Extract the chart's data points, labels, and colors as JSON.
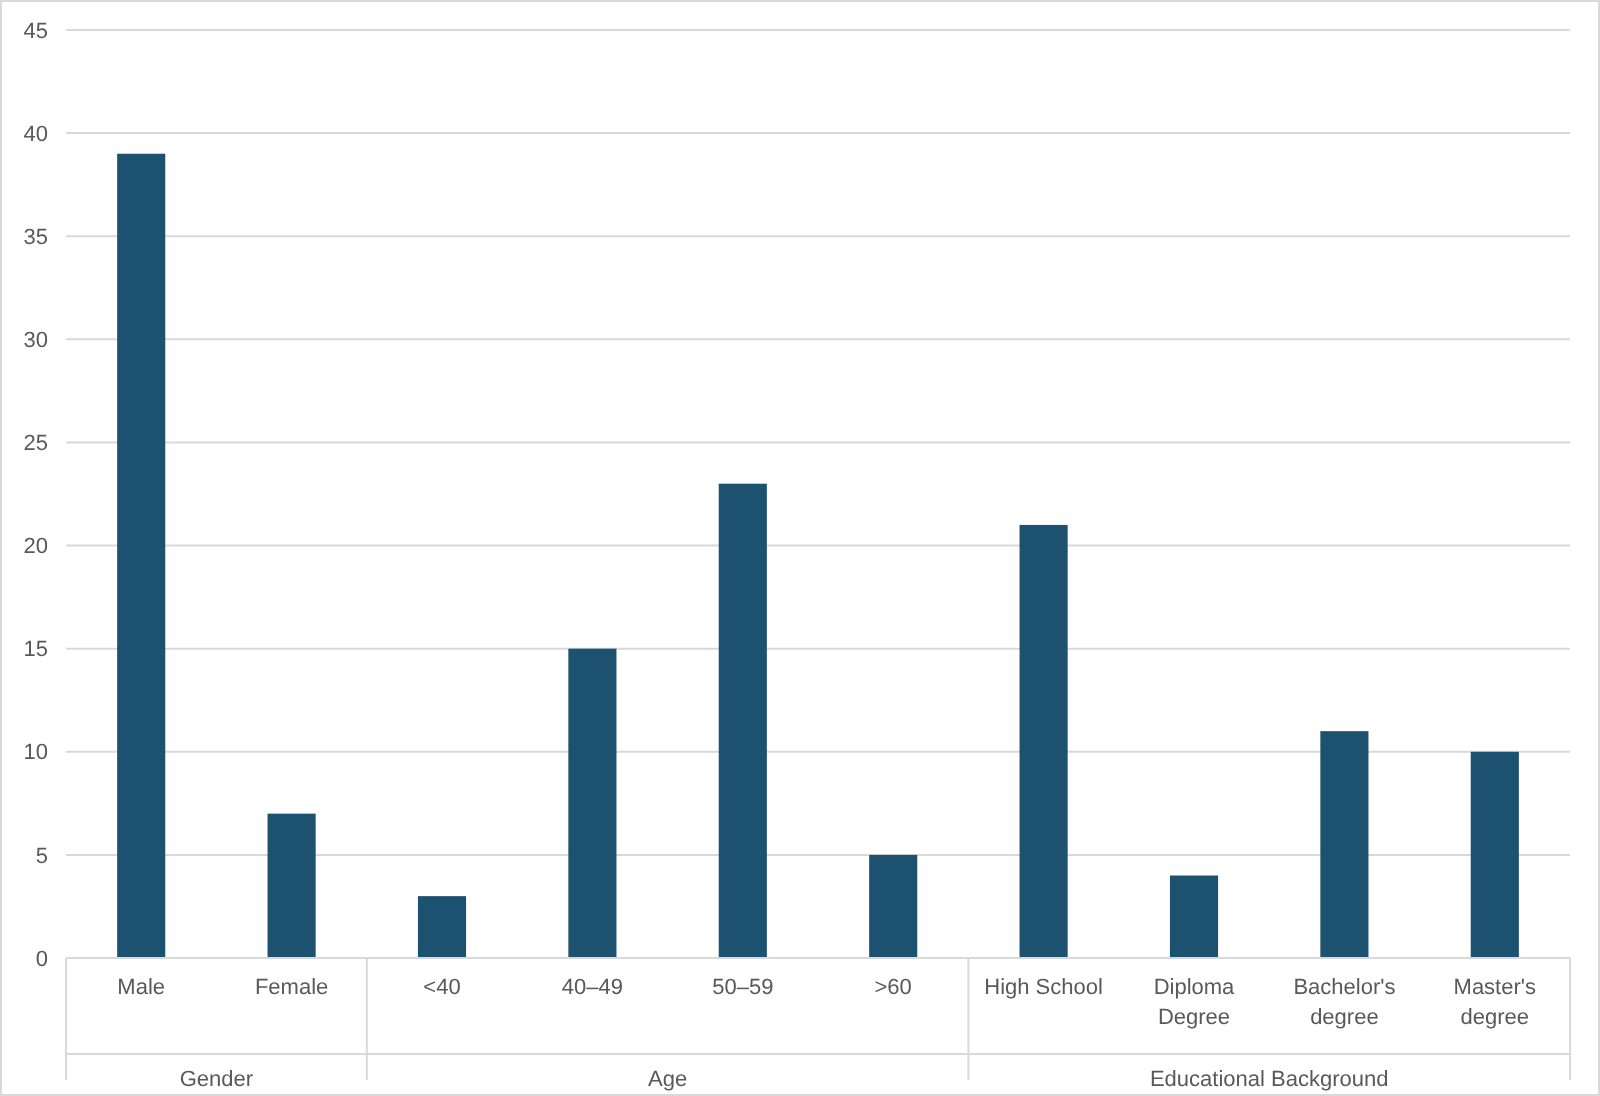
{
  "chart_data": {
    "type": "bar",
    "categories": [
      "Male",
      "Female",
      "<40",
      "40–49",
      "50–59",
      ">60",
      "High School",
      "Diploma Degree",
      "Bachelor's degree",
      "Master's degree"
    ],
    "values": [
      39,
      7,
      3,
      15,
      23,
      5,
      21,
      4,
      11,
      10
    ],
    "color": "#1d5170",
    "ylim": [
      0,
      45
    ],
    "yticks": [
      0,
      5,
      10,
      15,
      20,
      25,
      30,
      35,
      40,
      45
    ],
    "grid": "y",
    "annotations": [
      "Gender",
      "Age",
      "Educational Background"
    ]
  }
}
